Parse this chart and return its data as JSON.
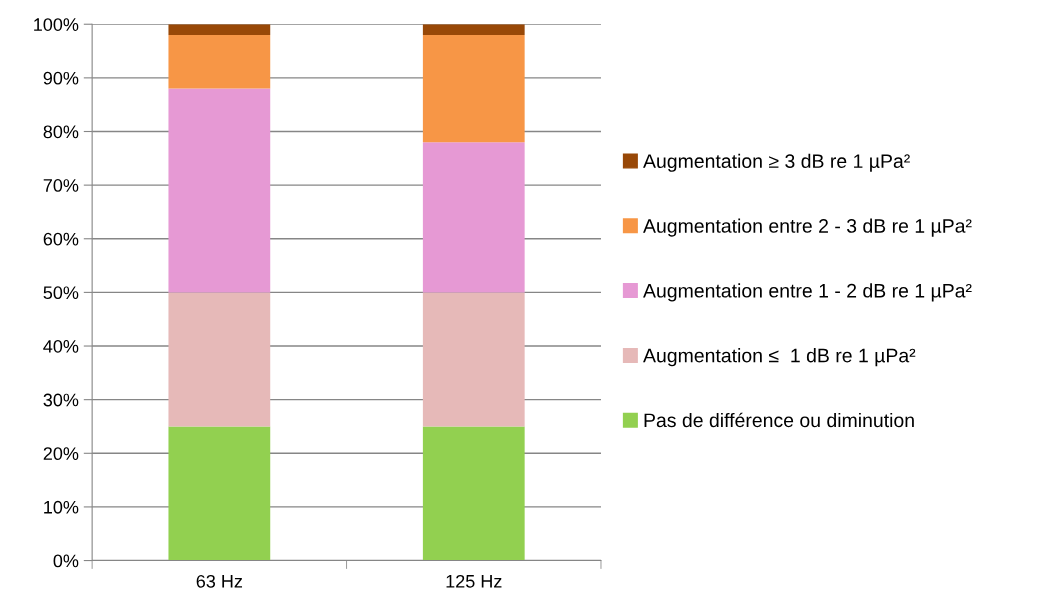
{
  "chart_data": {
    "type": "bar",
    "stacked": true,
    "categories": [
      "63 Hz",
      "125 Hz"
    ],
    "series": [
      {
        "name": "Pas de différence ou diminution",
        "color": "#92d050",
        "values": [
          25,
          25
        ]
      },
      {
        "name": "Augmentation ≤  1 dB re 1 µPa²",
        "color": "#e6b9b8",
        "values": [
          25,
          25
        ]
      },
      {
        "name": "Augmentation entre 1 - 2 dB re 1 µPa²",
        "color": "#e699d4",
        "values": [
          38,
          28
        ]
      },
      {
        "name": "Augmentation entre 2 - 3 dB re 1 µPa²",
        "color": "#f79646",
        "values": [
          10,
          20
        ]
      },
      {
        "name": "Augmentation ≥ 3 dB re 1 µPa²",
        "color": "#984807",
        "values": [
          2,
          2
        ]
      }
    ],
    "ylim": [
      0,
      100
    ],
    "yticks": [
      {
        "value": 0,
        "label": "0%"
      },
      {
        "value": 10,
        "label": "10%"
      },
      {
        "value": 20,
        "label": "20%"
      },
      {
        "value": 30,
        "label": "30%"
      },
      {
        "value": 40,
        "label": "40%"
      },
      {
        "value": 50,
        "label": "50%"
      },
      {
        "value": 60,
        "label": "60%"
      },
      {
        "value": 70,
        "label": "70%"
      },
      {
        "value": 80,
        "label": "80%"
      },
      {
        "value": 90,
        "label": "90%"
      },
      {
        "value": 100,
        "label": "100%"
      }
    ],
    "grid": "y",
    "legend": "right"
  }
}
